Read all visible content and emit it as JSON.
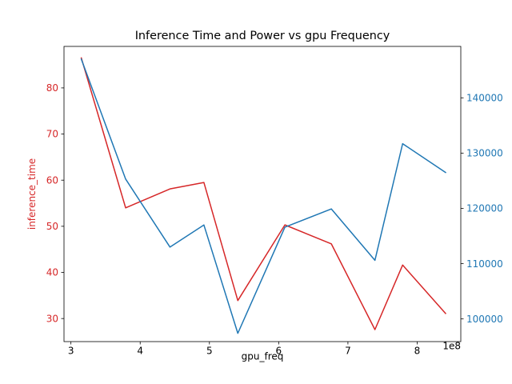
{
  "chart_data": {
    "type": "line",
    "title": "Inference Time and Power vs gpu Frequency",
    "xlabel": "gpu_freq",
    "ylabel_left": "inference_time",
    "ylabel_right": "",
    "x_offset_label": "1e8",
    "xlim": [
      2.9,
      8.63
    ],
    "ylim_left": [
      25.0,
      89.0
    ],
    "ylim_right": [
      95900,
      149300
    ],
    "x_ticks": [
      {
        "value": 3,
        "label": "3"
      },
      {
        "value": 4,
        "label": "4"
      },
      {
        "value": 5,
        "label": "5"
      },
      {
        "value": 6,
        "label": "6"
      },
      {
        "value": 7,
        "label": "7"
      },
      {
        "value": 8,
        "label": "8"
      }
    ],
    "y_ticks_left": [
      {
        "value": 30,
        "label": "30"
      },
      {
        "value": 40,
        "label": "40"
      },
      {
        "value": 50,
        "label": "50"
      },
      {
        "value": 60,
        "label": "60"
      },
      {
        "value": 70,
        "label": "70"
      },
      {
        "value": 80,
        "label": "80"
      }
    ],
    "y_ticks_right": [
      {
        "value": 100000,
        "label": "100000"
      },
      {
        "value": 110000,
        "label": "110000"
      },
      {
        "value": 120000,
        "label": "120000"
      },
      {
        "value": 130000,
        "label": "130000"
      },
      {
        "value": 140000,
        "label": "140000"
      }
    ],
    "x": [
      3.15,
      3.79,
      4.43,
      4.92,
      5.41,
      6.09,
      6.76,
      7.39,
      7.79,
      8.41
    ],
    "series": [
      {
        "axis": "left",
        "color": "#d62728",
        "values": [
          86.5,
          54.0,
          58.1,
          59.5,
          33.9,
          50.3,
          46.2,
          27.6,
          41.6,
          31.1
        ]
      },
      {
        "axis": "right",
        "color": "#1f77b4",
        "values": [
          147000,
          125300,
          113000,
          117000,
          97400,
          116600,
          119900,
          110600,
          131700,
          126500
        ]
      }
    ],
    "grid": false,
    "colors": {
      "left_axis": "#d62728",
      "right_axis": "#1f77b4"
    }
  }
}
